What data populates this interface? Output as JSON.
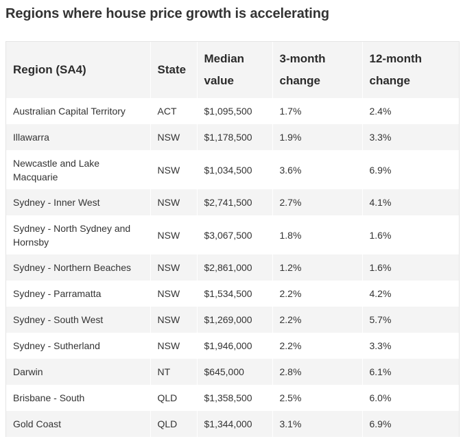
{
  "title": "Regions where house price growth is accelerating",
  "table": {
    "headers": {
      "region": "Region (SA4)",
      "state": "State",
      "median": "Median value",
      "three_month": "3-month change",
      "twelve_month": "12-month change"
    },
    "rows": [
      {
        "region": "Australian Capital Territory",
        "state": "ACT",
        "median": "$1,095,500",
        "three_month": "1.7%",
        "twelve_month": "2.4%"
      },
      {
        "region": "Illawarra",
        "state": "NSW",
        "median": "$1,178,500",
        "three_month": "1.9%",
        "twelve_month": "3.3%"
      },
      {
        "region": "Newcastle and Lake Macquarie",
        "state": "NSW",
        "median": "$1,034,500",
        "three_month": "3.6%",
        "twelve_month": "6.9%"
      },
      {
        "region": "Sydney - Inner West",
        "state": "NSW",
        "median": "$2,741,500",
        "three_month": "2.7%",
        "twelve_month": "4.1%"
      },
      {
        "region": "Sydney - North Sydney and Hornsby",
        "state": "NSW",
        "median": "$3,067,500",
        "three_month": "1.8%",
        "twelve_month": "1.6%"
      },
      {
        "region": "Sydney - Northern Beaches",
        "state": "NSW",
        "median": "$2,861,000",
        "three_month": "1.2%",
        "twelve_month": "1.6%"
      },
      {
        "region": "Sydney - Parramatta",
        "state": "NSW",
        "median": "$1,534,500",
        "three_month": "2.2%",
        "twelve_month": "4.2%"
      },
      {
        "region": "Sydney - South West",
        "state": "NSW",
        "median": "$1,269,000",
        "three_month": "2.2%",
        "twelve_month": "5.7%"
      },
      {
        "region": "Sydney - Sutherland",
        "state": "NSW",
        "median": "$1,946,000",
        "three_month": "2.2%",
        "twelve_month": "3.3%"
      },
      {
        "region": "Darwin",
        "state": "NT",
        "median": "$645,000",
        "three_month": "2.8%",
        "twelve_month": "6.1%"
      },
      {
        "region": "Brisbane - South",
        "state": "QLD",
        "median": "$1,358,500",
        "three_month": "2.5%",
        "twelve_month": "6.0%"
      },
      {
        "region": "Gold Coast",
        "state": "QLD",
        "median": "$1,344,000",
        "three_month": "3.1%",
        "twelve_month": "6.9%"
      }
    ]
  }
}
